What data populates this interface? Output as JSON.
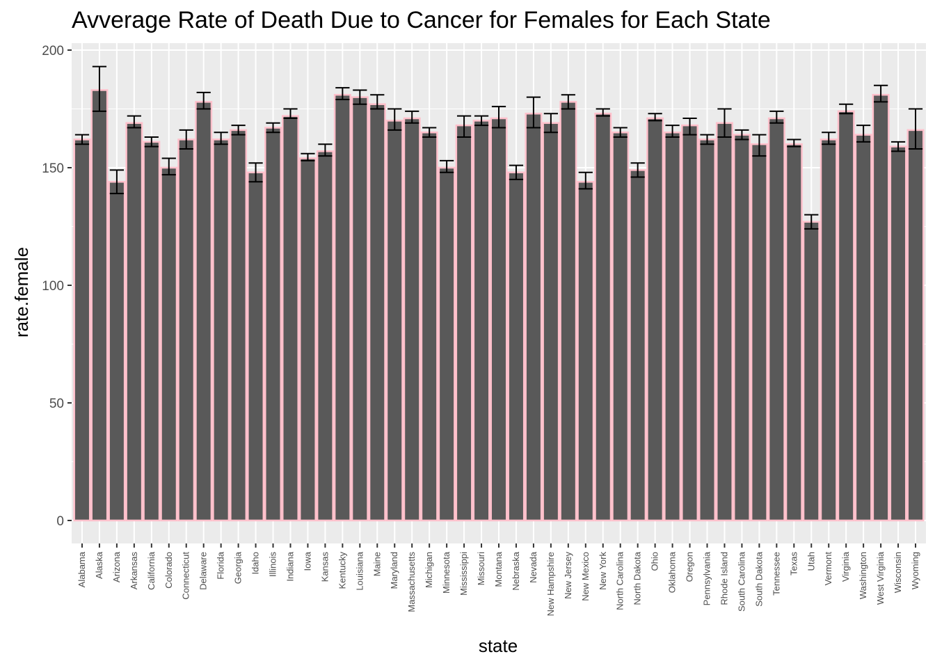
{
  "chart_data": {
    "type": "bar",
    "title": "Avverage Rate of Death Due to Cancer for Females for Each State",
    "xlabel": "state",
    "ylabel": "rate.female",
    "ylim": [
      0,
      200
    ],
    "yticks": [
      0,
      50,
      100,
      150,
      200
    ],
    "grid": true,
    "legend": "none",
    "colors": {
      "bar_fill": "#595959",
      "bar_outline": "#ffc0cb",
      "error_bar": "#000000",
      "panel_background": "#ebebeb",
      "grid": "#ffffff",
      "tick_text": "#4d4d4d"
    },
    "categories": [
      "Alabama",
      "Alaska",
      "Arizona",
      "Arkansas",
      "California",
      "Colorado",
      "Connecticut",
      "Delaware",
      "Florida",
      "Georgia",
      "Idaho",
      "Illinois",
      "Indiana",
      "Iowa",
      "Kansas",
      "Kentucky",
      "Louisiana",
      "Maine",
      "Maryland",
      "Massachusetts",
      "Michigan",
      "Minnesota",
      "Mississippi",
      "Missouri",
      "Montana",
      "Nebraska",
      "Nevada",
      "New Hampshire",
      "New Jersey",
      "New Mexico",
      "New York",
      "North Carolina",
      "North Dakota",
      "Ohio",
      "Oklahoma",
      "Oregon",
      "Pennsylvania",
      "Rhode Island",
      "South Carolina",
      "South Dakota",
      "Tennessee",
      "Texas",
      "Utah",
      "Vermont",
      "Virginia",
      "Washington",
      "West Virginia",
      "Wisconsin",
      "Wyoming"
    ],
    "values": [
      162,
      183,
      144,
      169,
      161,
      150,
      162,
      178,
      162,
      166,
      148,
      167,
      172,
      154,
      157,
      181,
      180,
      177,
      170,
      171,
      165,
      150,
      168,
      170,
      171,
      148,
      173,
      169,
      178,
      144,
      173,
      165,
      149,
      171,
      165,
      168,
      162,
      169,
      164,
      160,
      171,
      160,
      127,
      162,
      174,
      164,
      181,
      159,
      166
    ],
    "error_low": [
      160,
      174,
      139,
      167,
      159,
      147,
      158,
      175,
      160,
      164,
      144,
      165,
      171,
      153,
      155,
      179,
      177,
      175,
      166,
      169,
      163,
      148,
      163,
      168,
      167,
      145,
      167,
      165,
      175,
      141,
      172,
      163,
      146,
      170,
      163,
      164,
      160,
      163,
      162,
      155,
      169,
      159,
      124,
      160,
      173,
      161,
      178,
      157,
      158
    ],
    "error_high": [
      164,
      193,
      149,
      172,
      163,
      154,
      166,
      182,
      165,
      168,
      152,
      169,
      175,
      156,
      160,
      184,
      183,
      181,
      175,
      174,
      167,
      153,
      172,
      172,
      176,
      151,
      180,
      173,
      181,
      148,
      175,
      167,
      152,
      173,
      168,
      171,
      164,
      175,
      166,
      164,
      174,
      162,
      130,
      165,
      177,
      168,
      185,
      161,
      175
    ]
  }
}
